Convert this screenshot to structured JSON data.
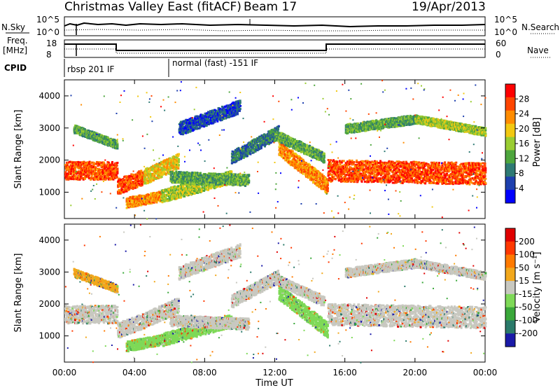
{
  "header": {
    "station": "Christmas Valley East (fitACF)",
    "beam": "Beam 17",
    "date": "19/Apr/2013"
  },
  "info_panels": {
    "nsky_label": "N.Sky",
    "nsky_ticks": [
      "10^5",
      "10^0"
    ],
    "nsearch_label": "N.Search",
    "nsearch_ticks": [
      "10^5",
      "10^0"
    ],
    "freq_label_1": "Freq.",
    "freq_label_2": "[MHz]",
    "freq_ticks": [
      "18",
      "8"
    ],
    "nave_label": "Nave",
    "nave_ticks": [
      "60",
      "0"
    ],
    "cpid_label": "CPID",
    "cpid_segments": [
      "rbsp 201 IF",
      "normal (fast) -151 IF"
    ]
  },
  "chart_data": [
    {
      "type": "heatmap",
      "name": "power",
      "ylabel": "Slant Range [km]",
      "yticks": [
        "4000",
        "3000",
        "2000",
        "1000"
      ],
      "ylim": [
        180,
        4500
      ],
      "colorbar_label": "Power [dB]",
      "colorbar_ticks": [
        "28",
        "24",
        "20",
        "16",
        "12",
        "8",
        "4"
      ],
      "colors": [
        "#0000ff",
        "#1d3fae",
        "#2e7a74",
        "#4ea63d",
        "#9acd32",
        "#f2c811",
        "#ff8c00",
        "#ff4500",
        "#ff0000"
      ]
    },
    {
      "type": "heatmap",
      "name": "velocity",
      "ylabel": "Slant Range [km]",
      "yticks": [
        "4000",
        "3000",
        "2000",
        "1000"
      ],
      "ylim": [
        180,
        4500
      ],
      "colorbar_label": "Velocity [m s⁻¹]",
      "colorbar_ticks": [
        "200",
        "100",
        "50",
        "15",
        "-15",
        "-50",
        "-100",
        "-200"
      ],
      "colors": [
        "#1a1aa8",
        "#2a7a6a",
        "#3aa83a",
        "#7ed957",
        "#c8c8c0",
        "#f2a81c",
        "#ff7a00",
        "#ff3800",
        "#e00000"
      ]
    }
  ],
  "xaxis": {
    "label": "Time UT",
    "ticks": [
      "00:00",
      "04:00",
      "08:00",
      "12:00",
      "16:00",
      "20:00",
      "00:00"
    ]
  },
  "colors": {
    "ground_scatter": "#c8c8c0"
  }
}
